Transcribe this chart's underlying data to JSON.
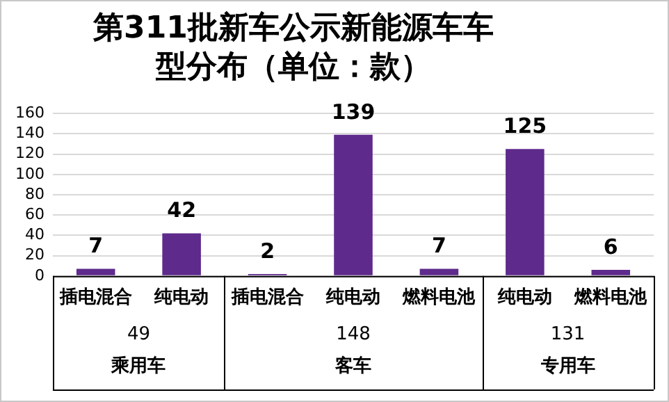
{
  "chart_data": {
    "type": "bar",
    "title": "第311批新车公示新能源车车型分布（单位：款）",
    "categories": [
      "插电混合",
      "纯电动",
      "插电混合",
      "纯电动",
      "燃料电池",
      "纯电动",
      "燃料电池"
    ],
    "values": [
      7,
      42,
      2,
      139,
      7,
      125,
      6
    ],
    "color": "#5e2a8c",
    "ylim": [
      0,
      160
    ],
    "yticks": [
      0,
      20,
      40,
      60,
      80,
      100,
      120,
      140,
      160
    ],
    "grid": "y",
    "data_labels": true,
    "annotations": [
      "49",
      "148",
      "131",
      "乘用车",
      "客车",
      "专用车"
    ]
  }
}
